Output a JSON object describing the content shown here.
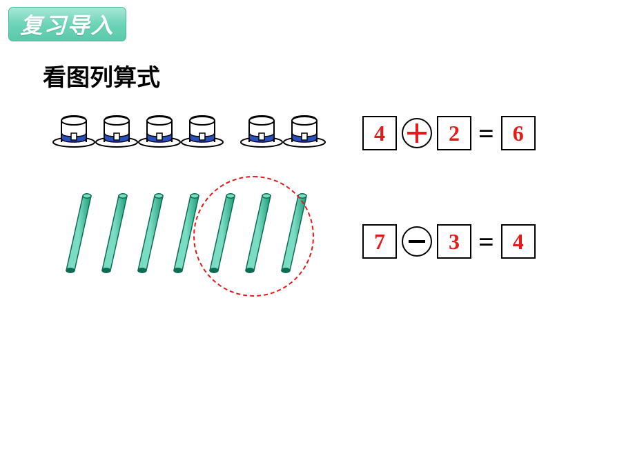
{
  "badge": {
    "label": "复习导入",
    "bg_gradient": [
      "#a8e8d8",
      "#5bc9ab"
    ],
    "text_color": "#ffffff"
  },
  "heading": "看图列算式",
  "hats": {
    "group1_count": 4,
    "group2_count": 2,
    "hat_color_fill": "#ffffff",
    "hat_color_stroke": "#000000",
    "hat_band_color": "#2a4fbf"
  },
  "sticks": {
    "count": 7,
    "circled_count": 3,
    "fill_light": "#7adcc2",
    "fill_dark": "#1f9b7a",
    "circle_color": "#e41b1b"
  },
  "equation1": {
    "a": "4",
    "op": "plus",
    "b": "2",
    "result": "6",
    "num_color": "#e41b1b",
    "op_color": "#e41b1b",
    "box_border": "#000000"
  },
  "equation2": {
    "a": "7",
    "op": "minus",
    "b": "3",
    "result": "4",
    "num_color": "#e41b1b",
    "op_color": "#000000",
    "box_border": "#000000"
  }
}
